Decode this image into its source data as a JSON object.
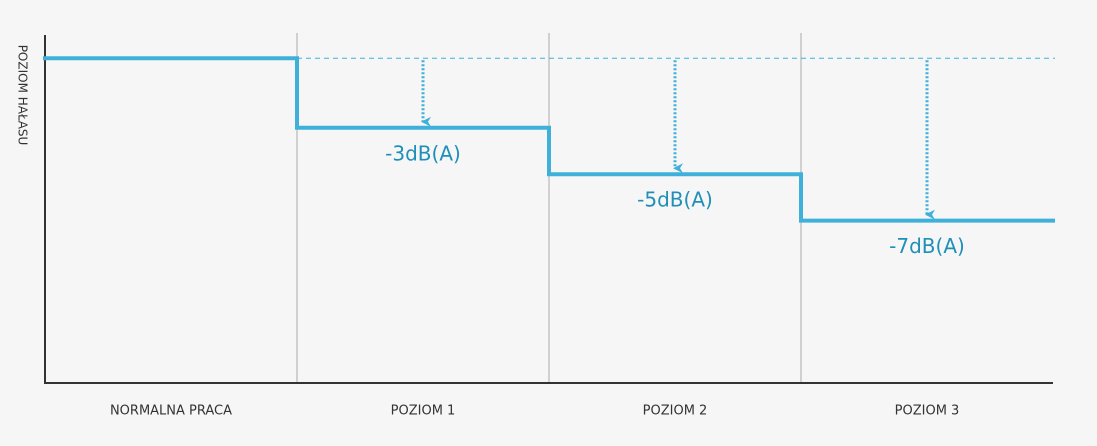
{
  "chart_data": {
    "type": "step",
    "ylabel": "POZIOM HAŁASU",
    "categories": [
      "NORMALNA PRACA",
      "POZIOM 1",
      "POZIOM 2",
      "POZIOM 3"
    ],
    "values": [
      0,
      -3,
      -5,
      -7
    ],
    "value_labels": [
      null,
      "-3dB(A)",
      "-5dB(A)",
      "-7dB(A)"
    ],
    "ylim": [
      -14,
      1
    ],
    "color": "#3fb0da"
  }
}
